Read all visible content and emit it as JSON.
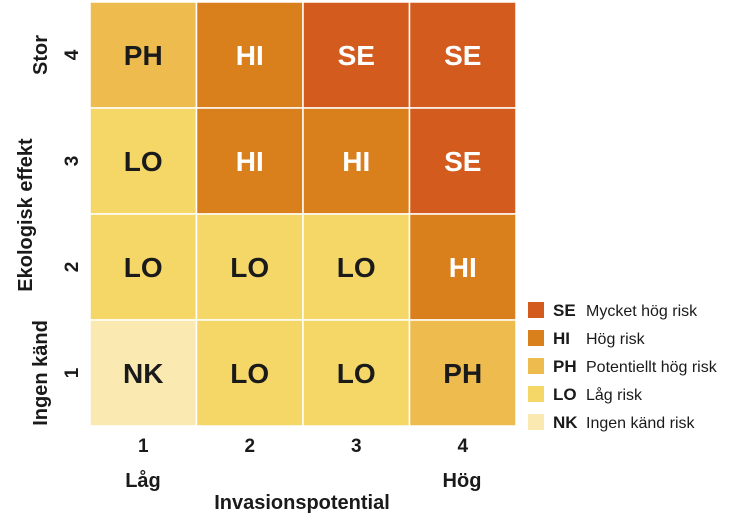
{
  "chart_data": {
    "type": "heatmap",
    "xlabel": "Invasionspotential",
    "ylabel": "Ekologisk effekt",
    "x_ticks": [
      "1",
      "2",
      "3",
      "4"
    ],
    "y_ticks": [
      "1",
      "2",
      "3",
      "4"
    ],
    "x_end_labels": {
      "low": "Låg",
      "high": "Hög"
    },
    "y_end_labels": {
      "low": "Ingen känd",
      "high": "Stor"
    },
    "rows": [
      {
        "y": "4",
        "cells": [
          "PH",
          "HI",
          "SE",
          "SE"
        ]
      },
      {
        "y": "3",
        "cells": [
          "LO",
          "HI",
          "HI",
          "SE"
        ]
      },
      {
        "y": "2",
        "cells": [
          "LO",
          "LO",
          "LO",
          "HI"
        ]
      },
      {
        "y": "1",
        "cells": [
          "NK",
          "LO",
          "LO",
          "PH"
        ]
      }
    ],
    "legend": [
      {
        "code": "SE",
        "label": "Mycket hög risk",
        "color": "#d35b1d"
      },
      {
        "code": "HI",
        "label": "Hög risk",
        "color": "#d97f1c"
      },
      {
        "code": "PH",
        "label": "Potentiellt hög risk",
        "color": "#edbb4e"
      },
      {
        "code": "LO",
        "label": "Låg risk",
        "color": "#f5d768"
      },
      {
        "code": "NK",
        "label": "Ingen känd risk",
        "color": "#faeab2"
      }
    ],
    "text_colors": {
      "light": "#ffffff",
      "dark": "#1a1a1a"
    },
    "light_text_codes": [
      "SE",
      "HI"
    ]
  }
}
